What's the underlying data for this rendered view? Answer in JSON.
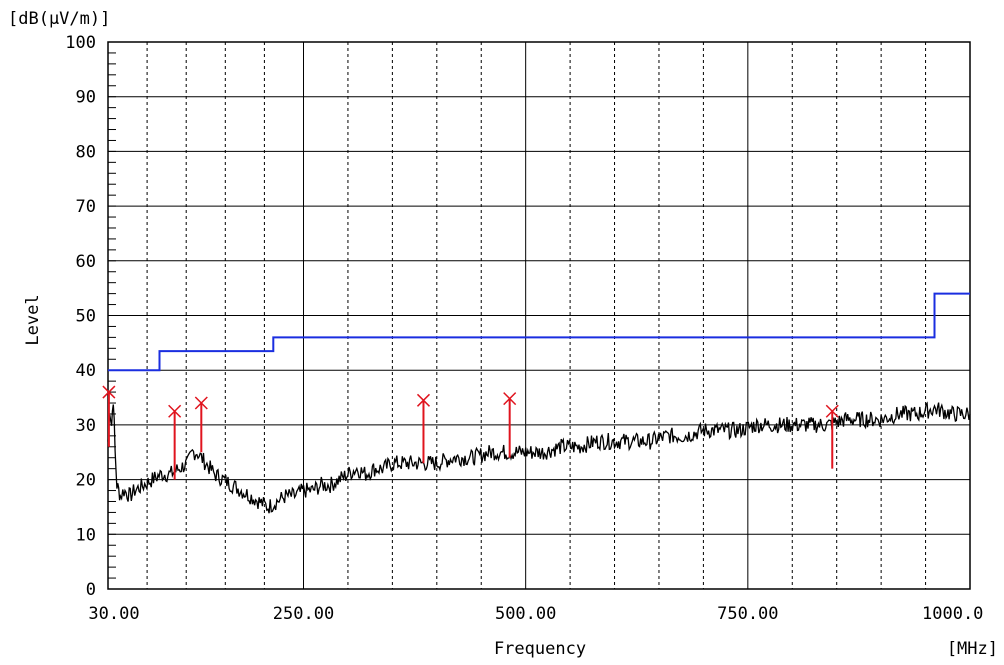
{
  "chart_data": {
    "type": "line",
    "title": "",
    "ylabel": "Level",
    "yunit": "[dB(μV/m)]",
    "xlabel": "Frequency",
    "xunit": "[MHz]",
    "xlim": [
      30,
      1000
    ],
    "ylim": [
      0,
      100
    ],
    "xticks": [
      30,
      250,
      500,
      750,
      1000
    ],
    "xtick_labels": [
      "30.00",
      "250.00",
      "500.00",
      "750.00",
      "1000.0"
    ],
    "yticks": [
      0,
      10,
      20,
      30,
      40,
      50,
      60,
      70,
      80,
      90,
      100
    ],
    "ytick_labels": [
      "0",
      "10",
      "20",
      "30",
      "40",
      "50",
      "60",
      "70",
      "80",
      "90",
      "100"
    ],
    "grid": true,
    "colors": {
      "limit": "#1a2ee0",
      "trace": "#000000",
      "marker": "#e0141e",
      "grid": "#000000"
    },
    "series": [
      {
        "role": "limit",
        "x": [
          30,
          88,
          88,
          216,
          216,
          960,
          960,
          1000
        ],
        "y": [
          40,
          40,
          43.5,
          43.5,
          46,
          46,
          54,
          54
        ]
      },
      {
        "role": "trace",
        "x": [
          30,
          32,
          34,
          36,
          38,
          40,
          42,
          44,
          48,
          55,
          60,
          70,
          80,
          90,
          100,
          110,
          120,
          125,
          130,
          135,
          140,
          150,
          160,
          170,
          180,
          190,
          200,
          210,
          220,
          230,
          240,
          250,
          260,
          270,
          280,
          290,
          300,
          310,
          320,
          330,
          340,
          350,
          360,
          380,
          400,
          420,
          440,
          460,
          480,
          500,
          520,
          540,
          560,
          580,
          600,
          620,
          640,
          660,
          680,
          700,
          720,
          740,
          760,
          780,
          800,
          820,
          840,
          860,
          880,
          900,
          920,
          940,
          960,
          980,
          1000
        ],
        "y": [
          27,
          33,
          30,
          35,
          25,
          19,
          18,
          17,
          18,
          17,
          18,
          19,
          20,
          21,
          21,
          22,
          23,
          25,
          25,
          24,
          23,
          21,
          20,
          19,
          18,
          17,
          16,
          15,
          16,
          17,
          17,
          18,
          18,
          19,
          19,
          20,
          21,
          22,
          21,
          22,
          22,
          23,
          23,
          23,
          23,
          24,
          24,
          25,
          25,
          25,
          25,
          26,
          26,
          27,
          27,
          27,
          27,
          28,
          28,
          29,
          29,
          29,
          30,
          30,
          30,
          30,
          30,
          31,
          31,
          31,
          32,
          32,
          33,
          32,
          32
        ]
      }
    ],
    "markers": [
      {
        "x": 31,
        "peak": 36,
        "base": 26
      },
      {
        "x": 105,
        "peak": 32.5,
        "base": 20
      },
      {
        "x": 135,
        "peak": 34,
        "base": 25
      },
      {
        "x": 385,
        "peak": 34.5,
        "base": 23
      },
      {
        "x": 482,
        "peak": 34.8,
        "base": 24
      },
      {
        "x": 845,
        "peak": 32.5,
        "base": 22
      }
    ]
  }
}
